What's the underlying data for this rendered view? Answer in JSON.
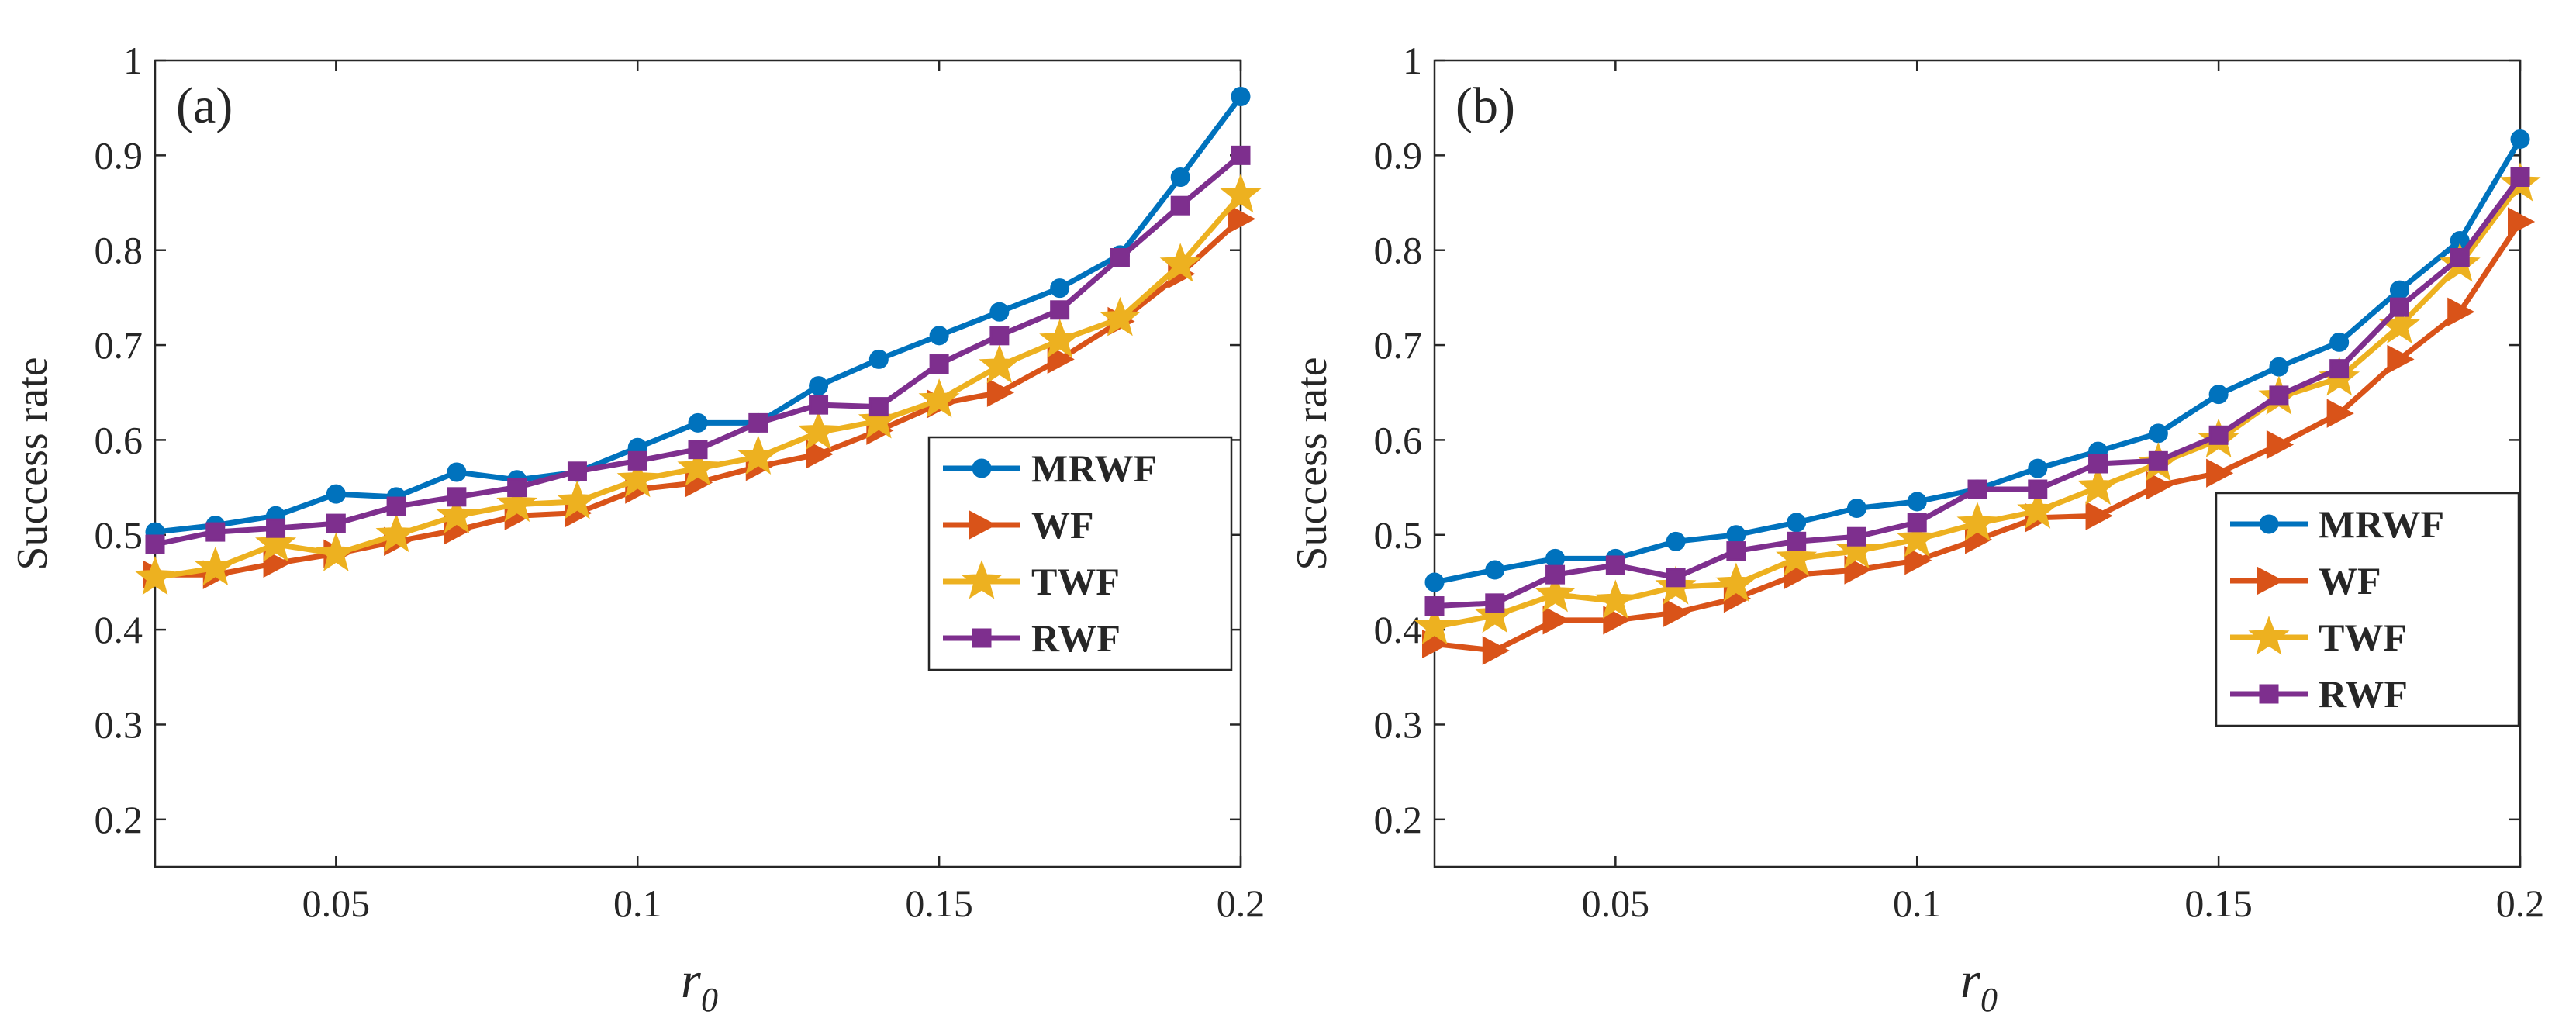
{
  "colors": {
    "MRWF": "#0072BD",
    "WF": "#D95319",
    "TWF": "#EDB120",
    "RWF": "#7E2F8E",
    "axis": "#262626"
  },
  "chart_data": [
    {
      "type": "line",
      "panel_label": "(a)",
      "xlabel": "r",
      "xlabel_subscript": "0",
      "ylabel": "Success rate",
      "xlim": [
        0.02,
        0.2
      ],
      "ylim": [
        0.15,
        1
      ],
      "xticks": [
        0.05,
        0.1,
        0.15,
        0.2
      ],
      "xtick_labels": [
        "0.05",
        "0.1",
        "0.15",
        "0.2"
      ],
      "yticks": [
        0.2,
        0.3,
        0.4,
        0.5,
        0.6,
        0.7,
        0.8,
        0.9,
        1
      ],
      "ytick_labels": [
        "0.2",
        "0.3",
        "0.4",
        "0.5",
        "0.6",
        "0.7",
        "0.8",
        "0.9",
        "1"
      ],
      "grid": false,
      "legend_position": "lower-right",
      "x": [
        0.02,
        0.03,
        0.04,
        0.05,
        0.06,
        0.07,
        0.08,
        0.09,
        0.1,
        0.11,
        0.12,
        0.13,
        0.14,
        0.15,
        0.16,
        0.17,
        0.18,
        0.19,
        0.2
      ],
      "series": [
        {
          "name": "MRWF",
          "marker": "circle",
          "color_key": "MRWF",
          "values": [
            0.503,
            0.51,
            0.52,
            0.543,
            0.54,
            0.566,
            0.558,
            0.566,
            0.592,
            0.618,
            0.618,
            0.657,
            0.685,
            0.71,
            0.735,
            0.76,
            0.795,
            0.877,
            0.962
          ]
        },
        {
          "name": "WF",
          "marker": "triangle-right",
          "color_key": "WF",
          "values": [
            0.458,
            0.458,
            0.47,
            0.48,
            0.493,
            0.505,
            0.52,
            0.523,
            0.548,
            0.555,
            0.572,
            0.585,
            0.61,
            0.638,
            0.65,
            0.685,
            0.725,
            0.775,
            0.833
          ]
        },
        {
          "name": "TWF",
          "marker": "star",
          "color_key": "TWF",
          "values": [
            0.455,
            0.465,
            0.49,
            0.48,
            0.5,
            0.52,
            0.532,
            0.535,
            0.558,
            0.57,
            0.582,
            0.608,
            0.62,
            0.642,
            0.678,
            0.705,
            0.728,
            0.785,
            0.858
          ]
        },
        {
          "name": "RWF",
          "marker": "square",
          "color_key": "RWF",
          "values": [
            0.49,
            0.503,
            0.507,
            0.512,
            0.53,
            0.54,
            0.55,
            0.567,
            0.578,
            0.59,
            0.618,
            0.637,
            0.635,
            0.68,
            0.71,
            0.737,
            0.792,
            0.847,
            0.9
          ]
        }
      ]
    },
    {
      "type": "line",
      "panel_label": "(b)",
      "xlabel": "r",
      "xlabel_subscript": "0",
      "ylabel": "Success rate",
      "xlim": [
        0.02,
        0.2
      ],
      "ylim": [
        0.15,
        1
      ],
      "xticks": [
        0.05,
        0.1,
        0.15,
        0.2
      ],
      "xtick_labels": [
        "0.05",
        "0.1",
        "0.15",
        "0.2"
      ],
      "yticks": [
        0.2,
        0.3,
        0.4,
        0.5,
        0.6,
        0.7,
        0.8,
        0.9,
        1
      ],
      "ytick_labels": [
        "0.2",
        "0.3",
        "0.4",
        "0.5",
        "0.6",
        "0.7",
        "0.8",
        "0.9",
        "1"
      ],
      "grid": false,
      "legend_position": "right",
      "x": [
        0.02,
        0.03,
        0.04,
        0.05,
        0.06,
        0.07,
        0.08,
        0.09,
        0.1,
        0.11,
        0.12,
        0.13,
        0.14,
        0.15,
        0.16,
        0.17,
        0.18,
        0.19,
        0.2
      ],
      "series": [
        {
          "name": "MRWF",
          "marker": "circle",
          "color_key": "MRWF",
          "values": [
            0.45,
            0.463,
            0.475,
            0.475,
            0.493,
            0.5,
            0.513,
            0.528,
            0.535,
            0.548,
            0.57,
            0.588,
            0.607,
            0.648,
            0.677,
            0.703,
            0.758,
            0.81,
            0.917
          ]
        },
        {
          "name": "WF",
          "marker": "triangle-right",
          "color_key": "WF",
          "values": [
            0.385,
            0.378,
            0.41,
            0.41,
            0.418,
            0.433,
            0.458,
            0.463,
            0.473,
            0.495,
            0.518,
            0.52,
            0.552,
            0.565,
            0.595,
            0.628,
            0.685,
            0.735,
            0.83
          ]
        },
        {
          "name": "TWF",
          "marker": "star",
          "color_key": "TWF",
          "values": [
            0.403,
            0.415,
            0.437,
            0.43,
            0.445,
            0.448,
            0.475,
            0.483,
            0.495,
            0.512,
            0.525,
            0.55,
            0.575,
            0.6,
            0.645,
            0.665,
            0.72,
            0.785,
            0.87
          ]
        },
        {
          "name": "RWF",
          "marker": "square",
          "color_key": "RWF",
          "values": [
            0.425,
            0.428,
            0.458,
            0.468,
            0.455,
            0.483,
            0.493,
            0.498,
            0.513,
            0.548,
            0.548,
            0.575,
            0.578,
            0.605,
            0.647,
            0.675,
            0.74,
            0.792,
            0.877
          ]
        }
      ]
    }
  ]
}
